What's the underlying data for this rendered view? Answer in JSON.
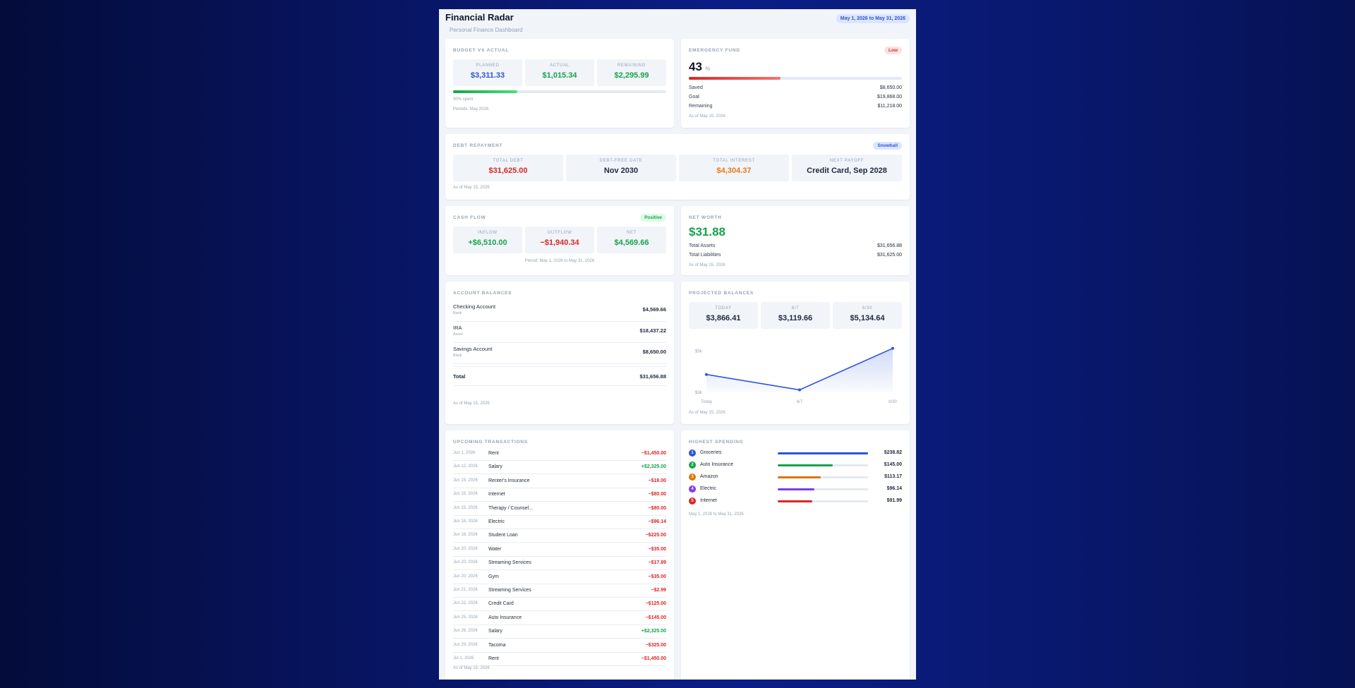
{
  "header": {
    "title": "Financial Radar",
    "subtitle": "Personal Finance Dashboard",
    "date_range": "May 1, 2026 to May 31, 2026"
  },
  "budget": {
    "title": "Budget vs Actual",
    "planned_label": "Planned",
    "planned": "$3,311.33",
    "actual_label": "Actual",
    "actual": "$1,015.34",
    "remaining_label": "Remaining",
    "remaining": "$2,295.99",
    "spent_fraction": 0.3,
    "spent_text": "30% spent",
    "period": "Periods: May 2026"
  },
  "emergency": {
    "title": "Emergency Fund",
    "badge": "Low",
    "percent": "43",
    "percent_unit": "%",
    "fraction": 0.43,
    "saved_label": "Saved",
    "saved": "$8,650.00",
    "goal_label": "Goal",
    "goal": "$19,868.00",
    "remaining_label": "Remaining",
    "remaining": "$11,218.00",
    "as_of": "As of May 15, 2026"
  },
  "debt": {
    "title": "Debt Repayment",
    "badge": "Snowball",
    "total_label": "Total Debt",
    "total": "$31,625.00",
    "free_label": "Debt-Free Date",
    "free": "Nov 2030",
    "interest_label": "Total Interest",
    "interest": "$4,304.37",
    "next_label": "Next Payoff",
    "next": "Credit Card, Sep 2028",
    "as_of": "As of May 15, 2026"
  },
  "cashflow": {
    "title": "Cash Flow",
    "badge": "Positive",
    "inflow_label": "Inflow",
    "inflow": "+$6,510.00",
    "outflow_label": "Outflow",
    "outflow": "−$1,940.34",
    "net_label": "Net",
    "net": "$4,569.66",
    "period": "Period: May 1, 2026 to May 31, 2026"
  },
  "networth": {
    "title": "Net Worth",
    "value": "$31.88",
    "assets_label": "Total Assets",
    "assets": "$31,656.88",
    "liab_label": "Total Liabilities",
    "liab": "$31,625.00",
    "as_of": "As of May 15, 2026"
  },
  "accounts": {
    "title": "Account Balances",
    "rows": [
      {
        "name": "Checking Account",
        "type": "Bank",
        "amount": "$4,569.66"
      },
      {
        "name": "IRA",
        "type": "Asset",
        "amount": "$18,437.22"
      },
      {
        "name": "Savings Account",
        "type": "Bank",
        "amount": "$8,650.00"
      }
    ],
    "total_label": "Total",
    "total": "$31,656.88",
    "as_of": "As of May 15, 2026"
  },
  "projected": {
    "title": "Projected Balances",
    "boxes": [
      {
        "label": "Today",
        "value": "$3,866.41"
      },
      {
        "label": "6/7",
        "value": "$3,119.66"
      },
      {
        "label": "6/30",
        "value": "$5,134.64"
      }
    ],
    "as_of": "As of May 15, 2026"
  },
  "chart_data": {
    "type": "area",
    "categories": [
      "Today",
      "6/7",
      "6/30"
    ],
    "values": [
      3866.41,
      3119.66,
      5134.64
    ],
    "ylim": [
      3000,
      5500
    ],
    "yticks": [
      {
        "value": 5000,
        "label": "$5k"
      },
      {
        "value": 3000,
        "label": "$3k"
      }
    ],
    "color": "#2d55d8"
  },
  "upcoming": {
    "title": "Upcoming Transactions",
    "rows": [
      {
        "date": "Jun 1, 2026",
        "desc": "Rent",
        "amount": "−$1,450.00",
        "kind": "neg"
      },
      {
        "date": "Jun 12, 2026",
        "desc": "Salary",
        "amount": "+$2,325.00",
        "kind": "pos"
      },
      {
        "date": "Jun 15, 2026",
        "desc": "Renter's Insurance",
        "amount": "−$18.00",
        "kind": "neg"
      },
      {
        "date": "Jun 15, 2026",
        "desc": "Internet",
        "amount": "−$80.00",
        "kind": "neg"
      },
      {
        "date": "Jun 15, 2026",
        "desc": "Therapy / Counsel...",
        "amount": "−$80.00",
        "kind": "neg"
      },
      {
        "date": "Jun 18, 2026",
        "desc": "Electric",
        "amount": "−$96.14",
        "kind": "neg"
      },
      {
        "date": "Jun 18, 2026",
        "desc": "Student Loan",
        "amount": "−$225.00",
        "kind": "neg"
      },
      {
        "date": "Jun 20, 2026",
        "desc": "Water",
        "amount": "−$35.00",
        "kind": "neg"
      },
      {
        "date": "Jun 20, 2026",
        "desc": "Streaming Services",
        "amount": "−$17.89",
        "kind": "neg"
      },
      {
        "date": "Jun 20, 2026",
        "desc": "Gym",
        "amount": "−$35.00",
        "kind": "neg"
      },
      {
        "date": "Jun 21, 2026",
        "desc": "Streaming Services",
        "amount": "−$2.99",
        "kind": "neg"
      },
      {
        "date": "Jun 22, 2026",
        "desc": "Credit Card",
        "amount": "−$125.00",
        "kind": "neg"
      },
      {
        "date": "Jun 25, 2026",
        "desc": "Auto Insurance",
        "amount": "−$145.00",
        "kind": "neg"
      },
      {
        "date": "Jun 26, 2026",
        "desc": "Salary",
        "amount": "+$2,325.00",
        "kind": "pos"
      },
      {
        "date": "Jun 29, 2026",
        "desc": "Tacoma",
        "amount": "−$325.00",
        "kind": "neg"
      },
      {
        "date": "Jul 1, 2026",
        "desc": "Rent",
        "amount": "−$1,450.00",
        "kind": "neg"
      }
    ],
    "as_of": "As of May 15, 2026"
  },
  "spending": {
    "title": "Highest Spending",
    "rows": [
      {
        "rank": "1",
        "name": "Groceries",
        "amount": "$238.82",
        "value": 238.82,
        "color": "#2d55d8"
      },
      {
        "rank": "2",
        "name": "Auto Insurance",
        "amount": "$145.00",
        "value": 145.0,
        "color": "#16a34a"
      },
      {
        "rank": "3",
        "name": "Amazon",
        "amount": "$113.17",
        "value": 113.17,
        "color": "#d97706"
      },
      {
        "rank": "4",
        "name": "Electric",
        "amount": "$96.14",
        "value": 96.14,
        "color": "#7c3aed"
      },
      {
        "rank": "5",
        "name": "Internet",
        "amount": "$91.99",
        "value": 91.99,
        "color": "#dc2626"
      }
    ],
    "max": 238.82,
    "period": "May 1, 2026 to May 31, 2026"
  },
  "colors": {
    "accent": "#2d55d8",
    "positive": "#16a34a",
    "negative": "#dc2626",
    "warning": "#ea7a16"
  }
}
